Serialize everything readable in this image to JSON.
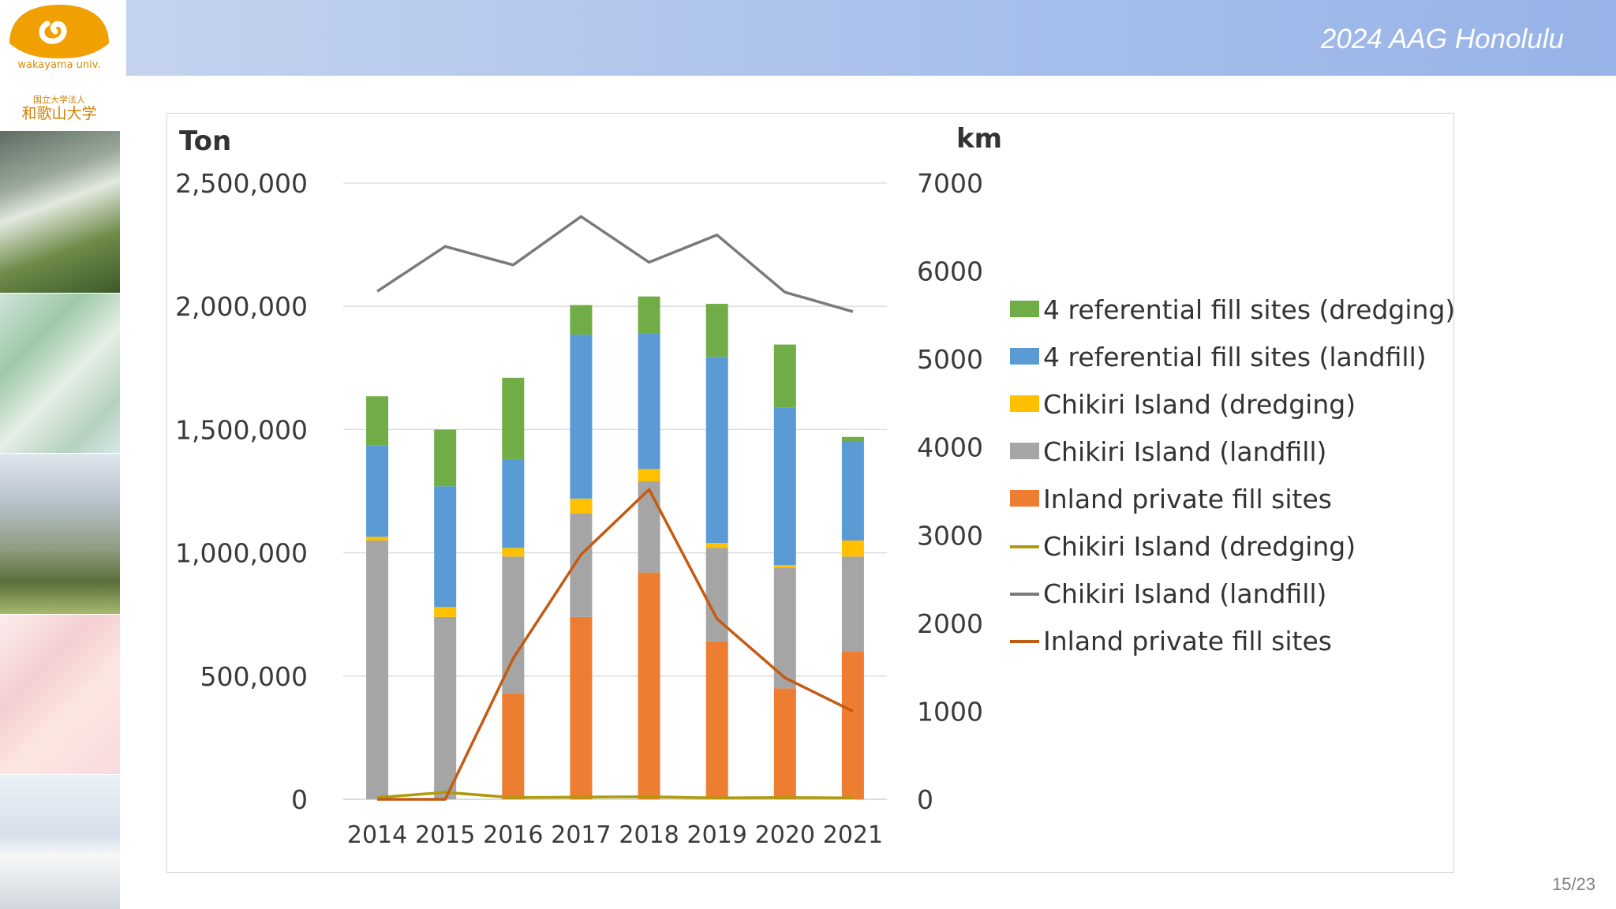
{
  "header": {
    "title": "2024 AAG Honolulu"
  },
  "logo": {
    "name_en": "wakayama univ.",
    "name_jp": "国立大学法人",
    "name_jp2": "和歌山大学"
  },
  "page": {
    "number": "15/23"
  },
  "colors": {
    "green": "#70ad47",
    "blue": "#5b9bd5",
    "yellow": "#ffc000",
    "gray": "#a5a5a5",
    "orange": "#ed7d31",
    "line_olive": "#b09a0c",
    "line_gray": "#7a7a7a",
    "line_orange": "#c55a11"
  },
  "chart_data": {
    "type": "bar",
    "stacked": true,
    "categories": [
      "2014",
      "2015",
      "2016",
      "2017",
      "2018",
      "2019",
      "2020",
      "2021"
    ],
    "y_left": {
      "label": "Ton",
      "range": [
        0,
        2500000
      ],
      "ticks": [
        0,
        500000,
        1000000,
        1500000,
        2000000,
        2500000
      ],
      "tick_labels": [
        "0",
        "500,000",
        "1,000,000",
        "1,500,000",
        "2,000,000",
        "2,500,000"
      ]
    },
    "y_right": {
      "label": "km",
      "range": [
        0,
        7000
      ],
      "ticks": [
        0,
        1000,
        2000,
        3000,
        4000,
        5000,
        6000,
        7000
      ],
      "tick_labels": [
        "0",
        "1000",
        "2000",
        "3000",
        "4000",
        "5000",
        "6000",
        "7000"
      ]
    },
    "gridlines": true,
    "legend_position": "right",
    "series": [
      {
        "name": "Inland private fill sites",
        "kind": "bar",
        "color": "#ed7d31",
        "values": [
          0,
          0,
          430000,
          740000,
          920000,
          640000,
          450000,
          600000
        ]
      },
      {
        "name": "Chikiri Island (landfill)",
        "kind": "bar",
        "color": "#a5a5a5",
        "values": [
          1050000,
          740000,
          555000,
          420000,
          370000,
          380000,
          490000,
          385000
        ]
      },
      {
        "name": "Chikiri Island (dredging)",
        "kind": "bar",
        "color": "#ffc000",
        "values": [
          15000,
          40000,
          35000,
          60000,
          50000,
          20000,
          10000,
          65000
        ]
      },
      {
        "name": "4 referential fill sites (landfill)",
        "kind": "bar",
        "color": "#5b9bd5",
        "values": [
          370000,
          490000,
          360000,
          665000,
          550000,
          755000,
          640000,
          400000
        ]
      },
      {
        "name": "4 referential fill sites (dredging)",
        "kind": "bar",
        "color": "#70ad47",
        "values": [
          200000,
          230000,
          330000,
          120000,
          150000,
          215000,
          255000,
          20000
        ]
      },
      {
        "name": "Chikiri Island (dredging)",
        "kind": "line",
        "axis": "right",
        "color": "#b09a0c",
        "values": [
          20,
          80,
          20,
          25,
          30,
          15,
          20,
          15
        ]
      },
      {
        "name": "Chikiri Island (landfill)",
        "kind": "line",
        "axis": "right",
        "color": "#7a7a7a",
        "values": [
          5770,
          6280,
          6070,
          6620,
          6100,
          6410,
          5760,
          5540
        ]
      },
      {
        "name": "Inland private fill sites",
        "kind": "line",
        "axis": "right",
        "color": "#c55a11",
        "values": [
          0,
          0,
          1600,
          2780,
          3520,
          2050,
          1380,
          1000
        ]
      }
    ],
    "legend": [
      {
        "label": "4 referential fill sites (dredging)",
        "marker": "box",
        "color": "#70ad47"
      },
      {
        "label": "4 referential fill sites (landfill)",
        "marker": "box",
        "color": "#5b9bd5"
      },
      {
        "label": "Chikiri Island (dredging)",
        "marker": "box",
        "color": "#ffc000"
      },
      {
        "label": "Chikiri Island (landfill)",
        "marker": "box",
        "color": "#a5a5a5"
      },
      {
        "label": "Inland private fill sites",
        "marker": "box",
        "color": "#ed7d31"
      },
      {
        "label": "Chikiri Island (dredging)",
        "marker": "line",
        "color": "#b09a0c"
      },
      {
        "label": "Chikiri Island (landfill)",
        "marker": "line",
        "color": "#7a7a7a"
      },
      {
        "label": "Inland private fill sites",
        "marker": "line",
        "color": "#c55a11"
      }
    ]
  }
}
